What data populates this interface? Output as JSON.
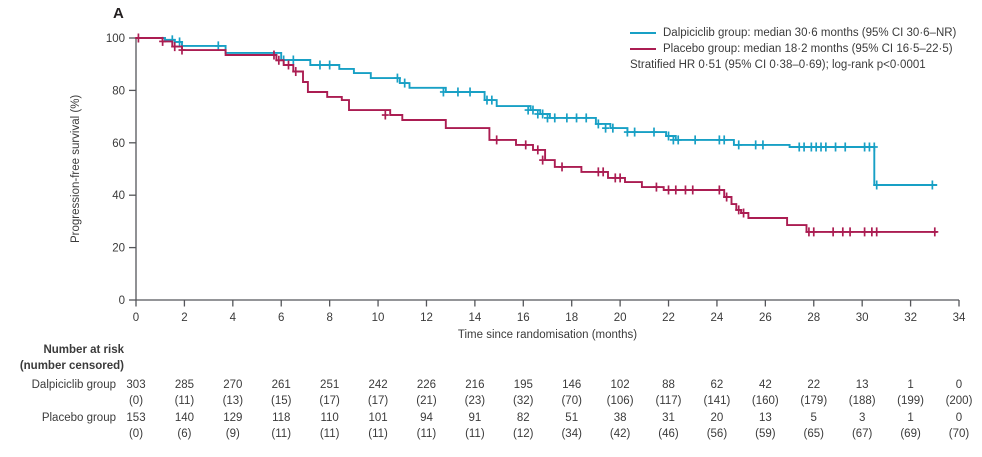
{
  "panel_label": "A",
  "colors": {
    "dalpiciclib": "#18a0c5",
    "placebo": "#ab1d52",
    "axis": "#55565a",
    "text": "#3b3b3b"
  },
  "legend": {
    "dalpiciclib": "Dalpiciclib group: median 30·6 months (95% CI 30·6–NR)",
    "placebo": "Placebo group: median 18·2 months (95% CI 16·5–22·5)",
    "hr_line": "Stratified HR 0·51 (95% CI 0·38–0·69); log-rank p<0·0001"
  },
  "axes": {
    "x_label": "Time since randomisation (months)",
    "y_label": "Progression-free survival (%)",
    "x_ticks": [
      0,
      2,
      4,
      6,
      8,
      10,
      12,
      14,
      16,
      18,
      20,
      22,
      24,
      26,
      28,
      30,
      32,
      34
    ],
    "y_ticks": [
      0,
      20,
      40,
      60,
      80,
      100
    ],
    "xlim": [
      0,
      34
    ],
    "ylim": [
      0,
      100
    ]
  },
  "chart_data": {
    "type": "line",
    "subtype": "kaplan-meier-step",
    "title": "",
    "xlabel": "Time since randomisation (months)",
    "ylabel": "Progression-free survival (%)",
    "xlim": [
      0,
      34
    ],
    "ylim": [
      0,
      100
    ],
    "grid": false,
    "legend_position": "top-right",
    "series": [
      {
        "id": "dalpiciclib",
        "name": "Dalpiciclib group",
        "median_text": "median 30·6 months (95% CI 30·6–NR)",
        "color": "#18a0c5",
        "steps": [
          [
            0,
            100
          ],
          [
            1.2,
            99.3
          ],
          [
            1.6,
            98.5
          ],
          [
            1.9,
            97.0
          ],
          [
            3.7,
            94.3
          ],
          [
            6.0,
            91.6
          ],
          [
            7.2,
            89.7
          ],
          [
            8.4,
            88.2
          ],
          [
            9.0,
            86.6
          ],
          [
            9.7,
            84.7
          ],
          [
            10.9,
            82.8
          ],
          [
            11.3,
            81.0
          ],
          [
            12.8,
            79.4
          ],
          [
            14.4,
            76.3
          ],
          [
            14.9,
            74.0
          ],
          [
            16.3,
            72.5
          ],
          [
            16.7,
            71.0
          ],
          [
            17.1,
            69.5
          ],
          [
            19.0,
            67.2
          ],
          [
            19.6,
            65.6
          ],
          [
            20.3,
            64.1
          ],
          [
            21.9,
            62.6
          ],
          [
            22.3,
            61.1
          ],
          [
            24.7,
            59.2
          ],
          [
            27.0,
            58.4
          ],
          [
            30.5,
            43.9
          ],
          [
            33.1,
            43.9
          ]
        ],
        "censors": [
          [
            1.5,
            99.3
          ],
          [
            1.8,
            98.5
          ],
          [
            3.4,
            97.0
          ],
          [
            6.1,
            91.6
          ],
          [
            6.5,
            91.6
          ],
          [
            7.6,
            89.7
          ],
          [
            8.0,
            89.7
          ],
          [
            10.8,
            84.7
          ],
          [
            11.1,
            82.8
          ],
          [
            12.7,
            79.4
          ],
          [
            13.3,
            79.4
          ],
          [
            13.8,
            79.4
          ],
          [
            14.5,
            76.3
          ],
          [
            14.7,
            76.3
          ],
          [
            16.2,
            72.5
          ],
          [
            16.4,
            72.5
          ],
          [
            16.6,
            71.0
          ],
          [
            16.8,
            71.0
          ],
          [
            17.0,
            69.5
          ],
          [
            17.3,
            69.5
          ],
          [
            17.8,
            69.5
          ],
          [
            18.2,
            69.5
          ],
          [
            18.6,
            69.5
          ],
          [
            19.1,
            67.2
          ],
          [
            19.4,
            65.6
          ],
          [
            19.7,
            65.6
          ],
          [
            20.3,
            64.1
          ],
          [
            20.6,
            64.1
          ],
          [
            21.4,
            64.1
          ],
          [
            22.0,
            62.6
          ],
          [
            22.2,
            61.1
          ],
          [
            22.4,
            61.1
          ],
          [
            23.1,
            61.1
          ],
          [
            24.1,
            61.1
          ],
          [
            24.3,
            61.1
          ],
          [
            24.9,
            59.2
          ],
          [
            25.6,
            59.2
          ],
          [
            25.9,
            59.2
          ],
          [
            27.4,
            58.4
          ],
          [
            27.6,
            58.4
          ],
          [
            27.9,
            58.4
          ],
          [
            28.1,
            58.4
          ],
          [
            28.3,
            58.4
          ],
          [
            28.5,
            58.4
          ],
          [
            28.9,
            58.4
          ],
          [
            29.3,
            58.4
          ],
          [
            30.1,
            58.4
          ],
          [
            30.3,
            58.4
          ],
          [
            30.5,
            58.4
          ],
          [
            30.6,
            43.9
          ],
          [
            32.9,
            43.9
          ]
        ]
      },
      {
        "id": "placebo",
        "name": "Placebo group",
        "median_text": "median 18·2 months (95% CI 16·5–22·5)",
        "color": "#ab1d52",
        "steps": [
          [
            0,
            100
          ],
          [
            1.1,
            98.7
          ],
          [
            1.5,
            96.7
          ],
          [
            1.9,
            95.4
          ],
          [
            3.7,
            93.5
          ],
          [
            5.8,
            91.5
          ],
          [
            6.1,
            89.7
          ],
          [
            6.5,
            87.2
          ],
          [
            6.9,
            83.2
          ],
          [
            7.1,
            79.4
          ],
          [
            7.9,
            77.5
          ],
          [
            8.5,
            76.3
          ],
          [
            8.8,
            72.5
          ],
          [
            10.5,
            70.6
          ],
          [
            11.0,
            68.7
          ],
          [
            12.8,
            65.6
          ],
          [
            14.6,
            61.1
          ],
          [
            15.7,
            59.2
          ],
          [
            16.4,
            57.3
          ],
          [
            16.9,
            53.4
          ],
          [
            17.3,
            50.8
          ],
          [
            18.4,
            48.9
          ],
          [
            19.5,
            46.6
          ],
          [
            20.2,
            45.0
          ],
          [
            20.9,
            43.1
          ],
          [
            21.8,
            42.0
          ],
          [
            24.3,
            39.3
          ],
          [
            24.6,
            36.6
          ],
          [
            24.8,
            34.4
          ],
          [
            25.0,
            33.2
          ],
          [
            25.3,
            31.3
          ],
          [
            26.9,
            28.6
          ],
          [
            27.7,
            26.0
          ],
          [
            33.1,
            26.0
          ]
        ],
        "censors": [
          [
            0.1,
            100
          ],
          [
            1.1,
            98.7
          ],
          [
            1.6,
            96.7
          ],
          [
            1.9,
            95.4
          ],
          [
            5.7,
            93.5
          ],
          [
            5.9,
            91.5
          ],
          [
            6.3,
            89.7
          ],
          [
            6.6,
            87.2
          ],
          [
            10.3,
            70.6
          ],
          [
            14.9,
            61.1
          ],
          [
            16.1,
            59.2
          ],
          [
            16.6,
            57.3
          ],
          [
            16.8,
            53.4
          ],
          [
            17.6,
            50.8
          ],
          [
            19.1,
            48.9
          ],
          [
            19.3,
            48.9
          ],
          [
            19.8,
            46.6
          ],
          [
            20.0,
            46.6
          ],
          [
            21.5,
            43.1
          ],
          [
            22.0,
            42.0
          ],
          [
            22.3,
            42.0
          ],
          [
            22.7,
            42.0
          ],
          [
            23.0,
            42.0
          ],
          [
            24.1,
            42.0
          ],
          [
            24.4,
            39.3
          ],
          [
            24.9,
            34.4
          ],
          [
            25.1,
            33.2
          ],
          [
            27.8,
            26.0
          ],
          [
            28.0,
            26.0
          ],
          [
            28.8,
            26.0
          ],
          [
            29.2,
            26.0
          ],
          [
            29.5,
            26.0
          ],
          [
            30.1,
            26.0
          ],
          [
            30.4,
            26.0
          ],
          [
            30.6,
            26.0
          ],
          [
            33.0,
            26.0
          ]
        ]
      }
    ],
    "hr_annotation": "Stratified HR 0·51 (95% CI 0·38–0·69); log-rank p<0·0001"
  },
  "risk_table": {
    "header_line1": "Number at risk",
    "header_line2": "(number censored)",
    "time_points": [
      0,
      2,
      4,
      6,
      8,
      10,
      12,
      14,
      16,
      18,
      20,
      22,
      24,
      26,
      28,
      30,
      32,
      34
    ],
    "rows": [
      {
        "label": "Dalpiciclib group",
        "at_risk": [
          303,
          285,
          270,
          261,
          251,
          242,
          226,
          216,
          195,
          146,
          102,
          88,
          62,
          42,
          22,
          13,
          1,
          0
        ],
        "censored": [
          0,
          11,
          13,
          15,
          17,
          17,
          21,
          23,
          32,
          70,
          106,
          117,
          141,
          160,
          179,
          188,
          199,
          200
        ]
      },
      {
        "label": "Placebo group",
        "at_risk": [
          153,
          140,
          129,
          118,
          110,
          101,
          94,
          91,
          82,
          51,
          38,
          31,
          20,
          13,
          5,
          3,
          1,
          0
        ],
        "censored": [
          0,
          6,
          9,
          11,
          11,
          11,
          11,
          11,
          12,
          34,
          42,
          46,
          56,
          59,
          65,
          67,
          69,
          70
        ]
      }
    ]
  }
}
